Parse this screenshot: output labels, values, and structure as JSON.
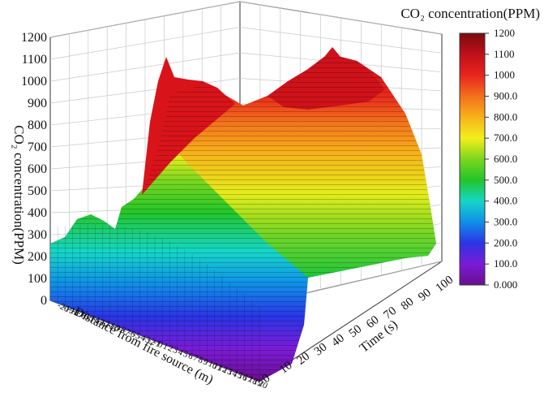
{
  "chart_data": {
    "type": "surface3d",
    "title": "",
    "zlabel": "CO₂ concentration(PPM)",
    "xlabel": "Distance from fire source (m)",
    "ylabel": "Time (s)",
    "colorbar_title": "CO₂ concentration(PPM)",
    "zlim": [
      0,
      1200
    ],
    "z_ticks": [
      "0",
      "100",
      "200",
      "300",
      "400",
      "500",
      "600",
      "700",
      "800",
      "900",
      "1000",
      "1100",
      "1200"
    ],
    "time_ticks": [
      "0",
      "10",
      "20",
      "30",
      "40",
      "50",
      "60",
      "70",
      "80",
      "90",
      "100"
    ],
    "distance_ticks": [
      "-20",
      "-19",
      "-18",
      "-17",
      "-16",
      "-15",
      "-14",
      "-13",
      "-12",
      "-11",
      "-10",
      "-9",
      "-8",
      "-7",
      "-6",
      "-5",
      "-4",
      "-3",
      "-2",
      "-1",
      "0",
      "1",
      "2",
      "3",
      "4",
      "5",
      "6",
      "7",
      "8",
      "9",
      "10",
      "11",
      "12",
      "13",
      "14",
      "15",
      "16",
      "17",
      "18",
      "19",
      "20"
    ],
    "colorbar_ticks": [
      "0.000",
      "100.0",
      "200.0",
      "300.0",
      "400.0",
      "500.0",
      "600.0",
      "700.0",
      "800.0",
      "900.0",
      "1000",
      "1100",
      "1200"
    ],
    "colormap": [
      "#6a0f8e",
      "#7b1bd6",
      "#2a35e6",
      "#0f8fe8",
      "#16d6c8",
      "#22c52a",
      "#7cd61e",
      "#f2ef1c",
      "#f7b21a",
      "#f2701c",
      "#e8261c",
      "#c0101a",
      "#7a0a0e"
    ],
    "surface_levels_ppm": {
      "time_0s_near_source": 380,
      "time_10s_peak": 1100,
      "time_20s_to_80s_plateau": 700,
      "time_85s_peak": 1150,
      "time_100s_end": 400
    }
  }
}
